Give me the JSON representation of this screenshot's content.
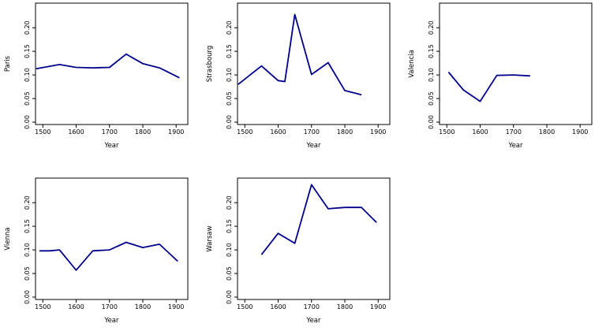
{
  "figure": {
    "background": "#ffffff",
    "axis_color": "#000000",
    "text_color": "#000000"
  },
  "chart_data": [
    {
      "type": "line",
      "title": "",
      "ylabel": "Paris",
      "xlabel": "Year",
      "x": [
        1480,
        1550,
        1600,
        1650,
        1700,
        1750,
        1800,
        1850,
        1910
      ],
      "y": [
        0.113,
        0.122,
        0.116,
        0.115,
        0.116,
        0.144,
        0.124,
        0.115,
        0.094
      ],
      "x_ticks": [
        1500,
        1600,
        1700,
        1800,
        1900
      ],
      "x_tick_labels": [
        "1500",
        "1600",
        "1700",
        "1800",
        "1900"
      ],
      "y_ticks": [
        0,
        0.05,
        0.1,
        0.15,
        0.2
      ],
      "y_tick_labels": [
        "0.00",
        "0.05",
        "0.10",
        "0.15",
        "0.20"
      ],
      "xlim": [
        1478,
        1935
      ],
      "ylim": [
        -0.005,
        0.252
      ],
      "line_color": "#00008b",
      "grid": false,
      "legend": null
    },
    {
      "type": "line",
      "title": "",
      "ylabel": "Strasbourg",
      "xlabel": "Year",
      "x": [
        1480,
        1550,
        1600,
        1620,
        1650,
        1700,
        1750,
        1800,
        1850
      ],
      "y": [
        0.08,
        0.119,
        0.088,
        0.086,
        0.228,
        0.101,
        0.126,
        0.067,
        0.058
      ],
      "x_ticks": [
        1500,
        1600,
        1700,
        1800,
        1900
      ],
      "x_tick_labels": [
        "1500",
        "1600",
        "1700",
        "1800",
        "1900"
      ],
      "y_ticks": [
        0,
        0.05,
        0.1,
        0.15,
        0.2
      ],
      "y_tick_labels": [
        "0.00",
        "0.05",
        "0.10",
        "0.15",
        "0.20"
      ],
      "xlim": [
        1478,
        1935
      ],
      "ylim": [
        -0.005,
        0.252
      ],
      "line_color": "#00008b",
      "grid": false,
      "legend": null
    },
    {
      "type": "line",
      "title": "",
      "ylabel": "Valencia",
      "xlabel": "Year",
      "x": [
        1505,
        1550,
        1600,
        1650,
        1700,
        1750
      ],
      "y": [
        0.106,
        0.068,
        0.044,
        0.099,
        0.1,
        0.098
      ],
      "x_ticks": [
        1500,
        1600,
        1700,
        1800,
        1900
      ],
      "x_tick_labels": [
        "1500",
        "1600",
        "1700",
        "1800",
        "1900"
      ],
      "y_ticks": [
        0,
        0.05,
        0.1,
        0.15,
        0.2
      ],
      "y_tick_labels": [
        "0.00",
        "0.05",
        "0.10",
        "0.15",
        "0.20"
      ],
      "xlim": [
        1478,
        1935
      ],
      "ylim": [
        -0.005,
        0.252
      ],
      "line_color": "#00008b",
      "grid": false,
      "legend": null
    },
    {
      "type": "line",
      "title": "",
      "ylabel": "Vienna",
      "xlabel": "Year",
      "x": [
        1490,
        1520,
        1550,
        1600,
        1650,
        1700,
        1750,
        1800,
        1850,
        1905
      ],
      "y": [
        0.098,
        0.098,
        0.1,
        0.057,
        0.098,
        0.1,
        0.116,
        0.105,
        0.112,
        0.076
      ],
      "x_ticks": [
        1500,
        1600,
        1700,
        1800,
        1900
      ],
      "x_tick_labels": [
        "1500",
        "1600",
        "1700",
        "1800",
        "1900"
      ],
      "y_ticks": [
        0,
        0.05,
        0.1,
        0.15,
        0.2
      ],
      "y_tick_labels": [
        "0.00",
        "0.05",
        "0.10",
        "0.15",
        "0.20"
      ],
      "xlim": [
        1478,
        1935
      ],
      "ylim": [
        -0.005,
        0.252
      ],
      "line_color": "#00008b",
      "grid": false,
      "legend": null
    },
    {
      "type": "line",
      "title": "",
      "ylabel": "Warsaw",
      "xlabel": "Year",
      "x": [
        1550,
        1600,
        1650,
        1700,
        1750,
        1800,
        1850,
        1895
      ],
      "y": [
        0.09,
        0.135,
        0.114,
        0.238,
        0.187,
        0.19,
        0.19,
        0.158
      ],
      "x_ticks": [
        1500,
        1600,
        1700,
        1800,
        1900
      ],
      "x_tick_labels": [
        "1500",
        "1600",
        "1700",
        "1800",
        "1900"
      ],
      "y_ticks": [
        0,
        0.05,
        0.1,
        0.15,
        0.2
      ],
      "y_tick_labels": [
        "0.00",
        "0.05",
        "0.10",
        "0.15",
        "0.20"
      ],
      "xlim": [
        1478,
        1935
      ],
      "ylim": [
        -0.005,
        0.252
      ],
      "line_color": "#00008b",
      "grid": false,
      "legend": null
    }
  ]
}
